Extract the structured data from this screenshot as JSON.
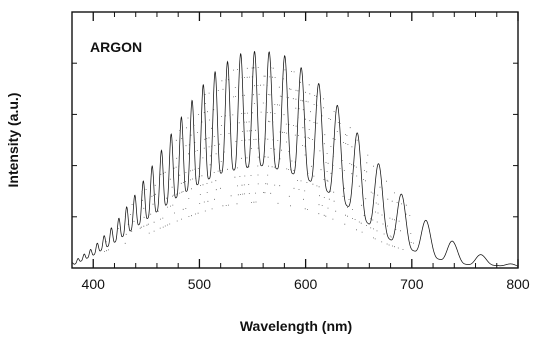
{
  "chart_data": {
    "type": "line",
    "title": "ARGON",
    "xlabel": "Wavelength (nm)",
    "ylabel": "Intensity (a.u.)",
    "xlim": [
      380,
      800
    ],
    "ylim": [
      0,
      1
    ],
    "x_ticks": [
      400,
      500,
      600,
      700,
      800
    ],
    "x_tick_labels": [
      "400",
      "500",
      "600",
      "700",
      "800"
    ],
    "y_tick_labels_shown": false,
    "grid": false,
    "series": [
      {
        "style": "oscillating-envelope",
        "x": [
          380,
          400,
          420,
          440,
          460,
          480,
          500,
          520,
          540,
          560,
          580,
          600,
          620,
          640,
          660,
          680,
          700,
          720,
          740,
          760,
          780,
          800
        ],
        "upper": [
          0.02,
          0.08,
          0.17,
          0.29,
          0.43,
          0.57,
          0.7,
          0.79,
          0.84,
          0.85,
          0.83,
          0.77,
          0.69,
          0.58,
          0.46,
          0.34,
          0.24,
          0.16,
          0.1,
          0.06,
          0.03,
          0.01
        ],
        "lower": [
          0.01,
          0.05,
          0.1,
          0.16,
          0.22,
          0.28,
          0.33,
          0.37,
          0.39,
          0.4,
          0.38,
          0.35,
          0.3,
          0.24,
          0.17,
          0.11,
          0.07,
          0.04,
          0.02,
          0.01,
          0.01,
          0.0
        ]
      }
    ]
  },
  "colors": {
    "ink": "#111111",
    "background": "#ffffff"
  }
}
